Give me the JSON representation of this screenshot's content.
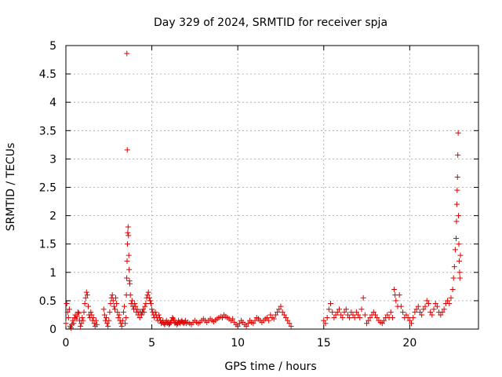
{
  "chart_data": {
    "type": "scatter",
    "title": "Day 329 of 2024, SRMTID for receiver spja",
    "xlabel": "GPS time / hours",
    "ylabel": "SRMTID / TECUs",
    "xlim": [
      0,
      24
    ],
    "ylim": [
      0,
      5
    ],
    "x_ticks": [
      0,
      5,
      10,
      15,
      20
    ],
    "x_tick_labels": [
      "0",
      "5",
      "10",
      "15",
      "20"
    ],
    "y_ticks": [
      0,
      0.5,
      1,
      1.5,
      2,
      2.5,
      3,
      3.5,
      4,
      4.5,
      5
    ],
    "y_tick_labels": [
      "0",
      "0.5",
      "1",
      "1.5",
      "2",
      "2.5",
      "3",
      "3.5",
      "4",
      "4.5",
      "5"
    ],
    "grid": true,
    "marker": "+",
    "color": "#e00000",
    "series": [
      {
        "name": "SRMTID",
        "points": [
          [
            0.0,
            0.1
          ],
          [
            0.05,
            0.45
          ],
          [
            0.1,
            0.3
          ],
          [
            0.15,
            0.2
          ],
          [
            0.2,
            0.35
          ],
          [
            0.25,
            0.05
          ],
          [
            0.3,
            0.02
          ],
          [
            0.35,
            0.08
          ],
          [
            0.4,
            0.15
          ],
          [
            0.45,
            0.1
          ],
          [
            0.5,
            0.2
          ],
          [
            0.55,
            0.25
          ],
          [
            0.6,
            0.18
          ],
          [
            0.65,
            0.22
          ],
          [
            0.7,
            0.3
          ],
          [
            0.75,
            0.28
          ],
          [
            0.8,
            0.15
          ],
          [
            0.85,
            0.05
          ],
          [
            0.9,
            0.1
          ],
          [
            0.95,
            0.2
          ],
          [
            1.0,
            0.15
          ],
          [
            1.05,
            0.3
          ],
          [
            1.1,
            0.45
          ],
          [
            1.15,
            0.55
          ],
          [
            1.2,
            0.65
          ],
          [
            1.25,
            0.6
          ],
          [
            1.3,
            0.4
          ],
          [
            1.35,
            0.25
          ],
          [
            1.4,
            0.2
          ],
          [
            1.45,
            0.3
          ],
          [
            1.5,
            0.25
          ],
          [
            1.55,
            0.15
          ],
          [
            1.6,
            0.2
          ],
          [
            1.65,
            0.1
          ],
          [
            1.7,
            0.05
          ],
          [
            1.75,
            0.15
          ],
          [
            1.8,
            0.08
          ],
          [
            2.2,
            0.35
          ],
          [
            2.25,
            0.25
          ],
          [
            2.3,
            0.15
          ],
          [
            2.35,
            0.2
          ],
          [
            2.4,
            0.1
          ],
          [
            2.45,
            0.05
          ],
          [
            2.5,
            0.15
          ],
          [
            2.55,
            0.3
          ],
          [
            2.6,
            0.45
          ],
          [
            2.65,
            0.55
          ],
          [
            2.7,
            0.6
          ],
          [
            2.75,
            0.5
          ],
          [
            2.8,
            0.4
          ],
          [
            2.85,
            0.35
          ],
          [
            2.9,
            0.55
          ],
          [
            2.95,
            0.45
          ],
          [
            3.0,
            0.3
          ],
          [
            3.05,
            0.2
          ],
          [
            3.1,
            0.25
          ],
          [
            3.15,
            0.15
          ],
          [
            3.2,
            0.1
          ],
          [
            3.25,
            0.05
          ],
          [
            3.3,
            0.15
          ],
          [
            3.35,
            0.3
          ],
          [
            3.4,
            0.4
          ],
          [
            3.45,
            0.1
          ],
          [
            3.5,
            0.2
          ],
          [
            3.52,
            0.6
          ],
          [
            3.54,
            0.9
          ],
          [
            3.56,
            1.2
          ],
          [
            3.58,
            1.5
          ],
          [
            3.6,
            1.7
          ],
          [
            3.62,
            1.8
          ],
          [
            3.64,
            1.65
          ],
          [
            3.66,
            1.3
          ],
          [
            3.68,
            1.05
          ],
          [
            3.7,
            0.85
          ],
          [
            3.72,
            0.8
          ],
          [
            3.55,
            4.86
          ],
          [
            3.57,
            3.16
          ],
          [
            3.75,
            0.6
          ],
          [
            3.8,
            0.45
          ],
          [
            3.85,
            0.5
          ],
          [
            3.9,
            0.4
          ],
          [
            3.95,
            0.35
          ],
          [
            4.0,
            0.45
          ],
          [
            4.05,
            0.4
          ],
          [
            4.1,
            0.3
          ],
          [
            4.15,
            0.35
          ],
          [
            4.2,
            0.25
          ],
          [
            4.25,
            0.3
          ],
          [
            4.3,
            0.2
          ],
          [
            4.35,
            0.3
          ],
          [
            4.4,
            0.25
          ],
          [
            4.45,
            0.3
          ],
          [
            4.5,
            0.35
          ],
          [
            4.55,
            0.3
          ],
          [
            4.6,
            0.4
          ],
          [
            4.65,
            0.45
          ],
          [
            4.7,
            0.55
          ],
          [
            4.75,
            0.6
          ],
          [
            4.8,
            0.65
          ],
          [
            4.85,
            0.55
          ],
          [
            4.9,
            0.5
          ],
          [
            4.95,
            0.45
          ],
          [
            5.0,
            0.35
          ],
          [
            5.05,
            0.3
          ],
          [
            5.1,
            0.25
          ],
          [
            5.15,
            0.2
          ],
          [
            5.2,
            0.3
          ],
          [
            5.25,
            0.25
          ],
          [
            5.3,
            0.2
          ],
          [
            5.35,
            0.15
          ],
          [
            5.4,
            0.25
          ],
          [
            5.45,
            0.2
          ],
          [
            5.5,
            0.15
          ],
          [
            5.55,
            0.1
          ],
          [
            5.6,
            0.12
          ],
          [
            5.65,
            0.15
          ],
          [
            5.7,
            0.1
          ],
          [
            5.75,
            0.08
          ],
          [
            5.8,
            0.12
          ],
          [
            5.85,
            0.15
          ],
          [
            5.9,
            0.1
          ],
          [
            5.95,
            0.12
          ],
          [
            6.0,
            0.08
          ],
          [
            6.05,
            0.1
          ],
          [
            6.1,
            0.12
          ],
          [
            6.15,
            0.15
          ],
          [
            6.2,
            0.2
          ],
          [
            6.25,
            0.18
          ],
          [
            6.3,
            0.15
          ],
          [
            6.35,
            0.1
          ],
          [
            6.4,
            0.12
          ],
          [
            6.45,
            0.08
          ],
          [
            6.5,
            0.1
          ],
          [
            6.55,
            0.15
          ],
          [
            6.6,
            0.12
          ],
          [
            6.65,
            0.1
          ],
          [
            6.7,
            0.13
          ],
          [
            6.75,
            0.15
          ],
          [
            6.8,
            0.12
          ],
          [
            6.85,
            0.1
          ],
          [
            6.9,
            0.12
          ],
          [
            6.95,
            0.15
          ],
          [
            7.0,
            0.1
          ],
          [
            7.1,
            0.12
          ],
          [
            7.2,
            0.1
          ],
          [
            7.3,
            0.08
          ],
          [
            7.4,
            0.12
          ],
          [
            7.5,
            0.15
          ],
          [
            7.6,
            0.12
          ],
          [
            7.7,
            0.1
          ],
          [
            7.8,
            0.12
          ],
          [
            7.9,
            0.15
          ],
          [
            8.0,
            0.18
          ],
          [
            8.1,
            0.15
          ],
          [
            8.2,
            0.12
          ],
          [
            8.3,
            0.15
          ],
          [
            8.4,
            0.18
          ],
          [
            8.5,
            0.15
          ],
          [
            8.6,
            0.13
          ],
          [
            8.7,
            0.16
          ],
          [
            8.8,
            0.18
          ],
          [
            8.9,
            0.2
          ],
          [
            9.0,
            0.22
          ],
          [
            9.1,
            0.2
          ],
          [
            9.2,
            0.25
          ],
          [
            9.3,
            0.22
          ],
          [
            9.4,
            0.2
          ],
          [
            9.5,
            0.18
          ],
          [
            9.6,
            0.15
          ],
          [
            9.7,
            0.18
          ],
          [
            9.8,
            0.12
          ],
          [
            9.9,
            0.08
          ],
          [
            10.0,
            0.05
          ],
          [
            10.1,
            0.1
          ],
          [
            10.2,
            0.15
          ],
          [
            10.3,
            0.12
          ],
          [
            10.4,
            0.08
          ],
          [
            10.5,
            0.05
          ],
          [
            10.6,
            0.1
          ],
          [
            10.7,
            0.15
          ],
          [
            10.8,
            0.12
          ],
          [
            10.9,
            0.1
          ],
          [
            11.0,
            0.15
          ],
          [
            11.1,
            0.2
          ],
          [
            11.2,
            0.18
          ],
          [
            11.3,
            0.15
          ],
          [
            11.4,
            0.12
          ],
          [
            11.5,
            0.15
          ],
          [
            11.6,
            0.18
          ],
          [
            11.7,
            0.2
          ],
          [
            11.8,
            0.15
          ],
          [
            11.9,
            0.25
          ],
          [
            12.0,
            0.2
          ],
          [
            12.1,
            0.18
          ],
          [
            12.2,
            0.25
          ],
          [
            12.3,
            0.3
          ],
          [
            12.4,
            0.35
          ],
          [
            12.5,
            0.4
          ],
          [
            12.6,
            0.3
          ],
          [
            12.7,
            0.25
          ],
          [
            12.8,
            0.2
          ],
          [
            12.9,
            0.15
          ],
          [
            13.0,
            0.1
          ],
          [
            13.1,
            0.05
          ],
          [
            15.0,
            0.15
          ],
          [
            15.1,
            0.1
          ],
          [
            15.2,
            0.2
          ],
          [
            15.3,
            0.35
          ],
          [
            15.4,
            0.45
          ],
          [
            15.5,
            0.3
          ],
          [
            15.6,
            0.2
          ],
          [
            15.7,
            0.25
          ],
          [
            15.8,
            0.3
          ],
          [
            15.9,
            0.35
          ],
          [
            16.0,
            0.25
          ],
          [
            16.1,
            0.2
          ],
          [
            16.2,
            0.3
          ],
          [
            16.3,
            0.35
          ],
          [
            16.4,
            0.25
          ],
          [
            16.5,
            0.2
          ],
          [
            16.6,
            0.3
          ],
          [
            16.7,
            0.25
          ],
          [
            16.8,
            0.2
          ],
          [
            16.9,
            0.3
          ],
          [
            17.0,
            0.25
          ],
          [
            17.1,
            0.2
          ],
          [
            17.2,
            0.35
          ],
          [
            17.3,
            0.55
          ],
          [
            17.4,
            0.25
          ],
          [
            17.5,
            0.1
          ],
          [
            17.6,
            0.15
          ],
          [
            17.7,
            0.2
          ],
          [
            17.8,
            0.25
          ],
          [
            17.9,
            0.3
          ],
          [
            18.0,
            0.25
          ],
          [
            18.1,
            0.2
          ],
          [
            18.2,
            0.15
          ],
          [
            18.3,
            0.12
          ],
          [
            18.4,
            0.1
          ],
          [
            18.5,
            0.15
          ],
          [
            18.6,
            0.2
          ],
          [
            18.7,
            0.25
          ],
          [
            18.8,
            0.2
          ],
          [
            18.9,
            0.3
          ],
          [
            19.0,
            0.2
          ],
          [
            19.1,
            0.7
          ],
          [
            19.15,
            0.6
          ],
          [
            19.2,
            0.5
          ],
          [
            19.3,
            0.4
          ],
          [
            19.4,
            0.6
          ],
          [
            19.5,
            0.4
          ],
          [
            19.6,
            0.3
          ],
          [
            19.7,
            0.2
          ],
          [
            19.8,
            0.25
          ],
          [
            19.9,
            0.2
          ],
          [
            20.0,
            0.15
          ],
          [
            20.1,
            0.1
          ],
          [
            20.2,
            0.2
          ],
          [
            20.3,
            0.3
          ],
          [
            20.4,
            0.35
          ],
          [
            20.5,
            0.4
          ],
          [
            20.6,
            0.3
          ],
          [
            20.7,
            0.25
          ],
          [
            20.8,
            0.35
          ],
          [
            20.9,
            0.4
          ],
          [
            21.0,
            0.5
          ],
          [
            21.1,
            0.45
          ],
          [
            21.2,
            0.3
          ],
          [
            21.3,
            0.25
          ],
          [
            21.4,
            0.35
          ],
          [
            21.5,
            0.45
          ],
          [
            21.6,
            0.4
          ],
          [
            21.7,
            0.3
          ],
          [
            21.8,
            0.25
          ],
          [
            21.9,
            0.3
          ],
          [
            22.0,
            0.35
          ],
          [
            22.1,
            0.45
          ],
          [
            22.2,
            0.5
          ],
          [
            22.3,
            0.45
          ],
          [
            22.4,
            0.55
          ],
          [
            22.5,
            0.7
          ],
          [
            22.55,
            0.9
          ],
          [
            22.6,
            1.1
          ],
          [
            22.65,
            1.4
          ],
          [
            22.7,
            1.6
          ],
          [
            22.72,
            1.9
          ],
          [
            22.74,
            2.2
          ],
          [
            22.76,
            2.45
          ],
          [
            22.78,
            2.68
          ],
          [
            22.8,
            3.07
          ],
          [
            22.82,
            3.46
          ],
          [
            22.84,
            2.0
          ],
          [
            22.86,
            1.5
          ],
          [
            22.88,
            1.2
          ],
          [
            22.9,
            1.0
          ],
          [
            22.92,
            0.9
          ],
          [
            22.95,
            1.3
          ]
        ]
      }
    ]
  }
}
